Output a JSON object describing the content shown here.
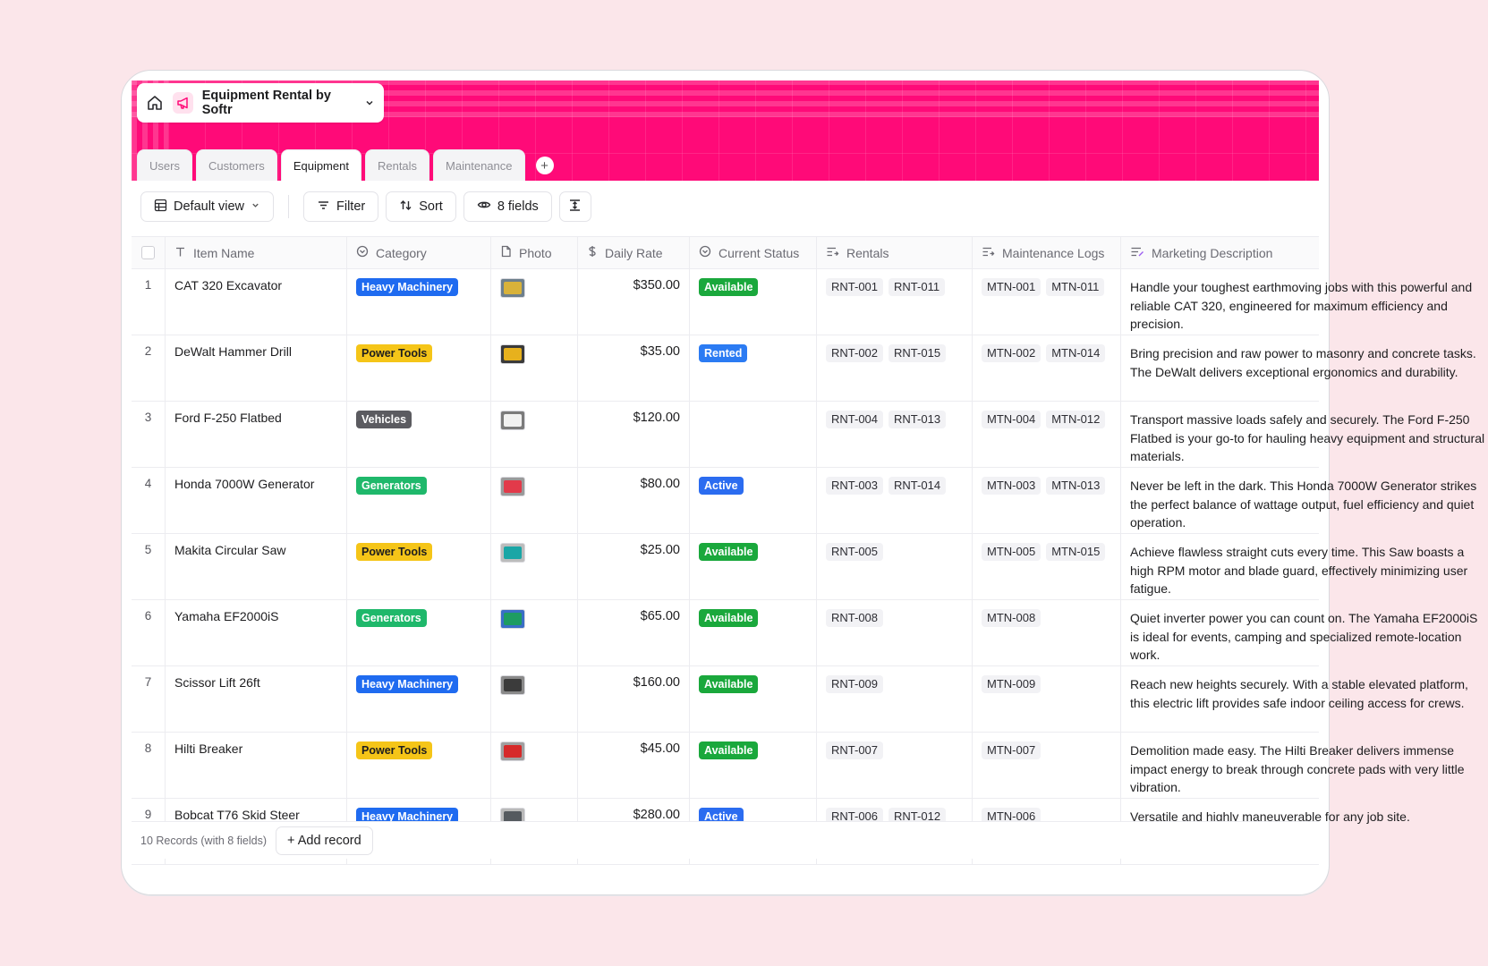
{
  "app": {
    "title": "Equipment Rental by Softr"
  },
  "tabs": [
    {
      "label": "Users",
      "active": false
    },
    {
      "label": "Customers",
      "active": false
    },
    {
      "label": "Equipment",
      "active": true
    },
    {
      "label": "Rentals",
      "active": false
    },
    {
      "label": "Maintenance",
      "active": false
    }
  ],
  "toolbar": {
    "view_label": "Default view",
    "filter_label": "Filter",
    "sort_label": "Sort",
    "fields_label": "8 fields"
  },
  "columns": [
    {
      "label": "Item Name",
      "icon": "text-icon"
    },
    {
      "label": "Category",
      "icon": "select-icon"
    },
    {
      "label": "Photo",
      "icon": "file-icon"
    },
    {
      "label": "Daily Rate",
      "icon": "dollar-icon"
    },
    {
      "label": "Current Status",
      "icon": "select-icon"
    },
    {
      "label": "Rentals",
      "icon": "linked-record-icon"
    },
    {
      "label": "Maintenance Logs",
      "icon": "linked-record-icon"
    },
    {
      "label": "Marketing Description",
      "icon": "long-text-icon"
    }
  ],
  "colors": {
    "header_bg": "#ff0a78",
    "Heavy Machinery": "#1f6bf0",
    "Power Tools": "#f5c518",
    "Vehicles": "#5b5b60",
    "Generators": "#1fb86b",
    "Available": "#1aa83c",
    "Rented": "#2b7bf3",
    "Active": "#2b6cf0"
  },
  "rows": [
    {
      "num": "1",
      "name": "CAT 320 Excavator",
      "category": "Heavy Machinery",
      "photo": "excavator-photo",
      "rate": "$350.00",
      "status": "Available",
      "rentals": [
        "RNT-001",
        "RNT-011"
      ],
      "maintenance": [
        "MTN-001",
        "MTN-011"
      ],
      "description": "Handle your toughest earthmoving jobs with this powerful and reliable CAT 320, engineered for maximum efficiency and precision."
    },
    {
      "num": "2",
      "name": "DeWalt Hammer Drill",
      "category": "Power Tools",
      "photo": "drill-photo",
      "rate": "$35.00",
      "status": "Rented",
      "rentals": [
        "RNT-002",
        "RNT-015"
      ],
      "maintenance": [
        "MTN-002",
        "MTN-014"
      ],
      "description": "Bring precision and raw power to masonry and concrete tasks. The DeWalt delivers exceptional ergonomics and durability."
    },
    {
      "num": "3",
      "name": "Ford F-250 Flatbed",
      "category": "Vehicles",
      "photo": "truck-photo",
      "rate": "$120.00",
      "status": "",
      "rentals": [
        "RNT-004",
        "RNT-013"
      ],
      "maintenance": [
        "MTN-004",
        "MTN-012"
      ],
      "description": "Transport massive loads safely and securely. The Ford F-250 Flatbed is your go-to for hauling heavy equipment and structural materials."
    },
    {
      "num": "4",
      "name": "Honda 7000W Generator",
      "category": "Generators",
      "photo": "generator-photo",
      "rate": "$80.00",
      "status": "Active",
      "rentals": [
        "RNT-003",
        "RNT-014"
      ],
      "maintenance": [
        "MTN-003",
        "MTN-013"
      ],
      "description": "Never be left in the dark. This Honda 7000W Generator strikes the perfect balance of wattage output, fuel efficiency and quiet operation."
    },
    {
      "num": "5",
      "name": "Makita Circular Saw",
      "category": "Power Tools",
      "photo": "saw-photo",
      "rate": "$25.00",
      "status": "Available",
      "rentals": [
        "RNT-005"
      ],
      "maintenance": [
        "MTN-005",
        "MTN-015"
      ],
      "description": "Achieve flawless straight cuts every time. This Saw boasts a high RPM motor and blade guard, effectively minimizing user fatigue."
    },
    {
      "num": "6",
      "name": "Yamaha EF2000iS",
      "category": "Generators",
      "photo": "inverter-photo",
      "rate": "$65.00",
      "status": "Available",
      "rentals": [
        "RNT-008"
      ],
      "maintenance": [
        "MTN-008"
      ],
      "description": "Quiet inverter power you can count on. The Yamaha EF2000iS is ideal for events, camping and specialized remote-location work."
    },
    {
      "num": "7",
      "name": "Scissor Lift 26ft",
      "category": "Heavy Machinery",
      "photo": "lift-photo",
      "rate": "$160.00",
      "status": "Available",
      "rentals": [
        "RNT-009"
      ],
      "maintenance": [
        "MTN-009"
      ],
      "description": "Reach new heights securely. With a stable elevated platform, this electric lift provides safe indoor ceiling access for crews."
    },
    {
      "num": "8",
      "name": "Hilti Breaker",
      "category": "Power Tools",
      "photo": "breaker-photo",
      "rate": "$45.00",
      "status": "Available",
      "rentals": [
        "RNT-007"
      ],
      "maintenance": [
        "MTN-007"
      ],
      "description": "Demolition made easy. The Hilti Breaker delivers immense impact energy to break through concrete pads with very little vibration."
    },
    {
      "num": "9",
      "name": "Bobcat T76 Skid Steer",
      "category": "Heavy Machinery",
      "photo": "skid-steer-photo",
      "rate": "$280.00",
      "status": "Active",
      "rentals": [
        "RNT-006",
        "RNT-012"
      ],
      "maintenance": [
        "MTN-006"
      ],
      "description": "Versatile and highly maneuverable for any job site."
    }
  ],
  "footer": {
    "count_label": "10 Records (with 8 fields)",
    "add_label": "+ Add record"
  }
}
